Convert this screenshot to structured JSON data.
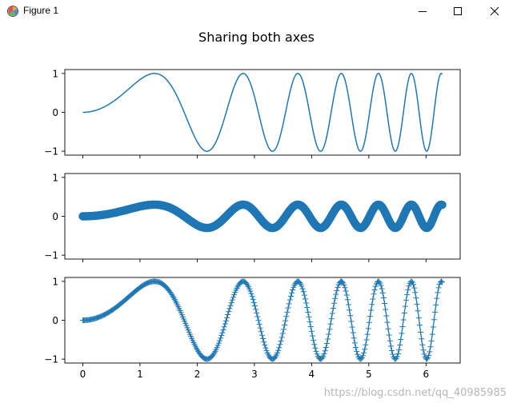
{
  "window": {
    "title": "Figure 1",
    "icons": [
      "figure-app-icon",
      "minimize-icon",
      "maximize-icon",
      "close-icon"
    ]
  },
  "figure": {
    "suptitle": "Sharing both axes"
  },
  "watermark": {
    "text": "https://blog.csdn.net/qq_40985985"
  },
  "chart_data": [
    {
      "type": "line",
      "title": "",
      "function": "sin(x^2)",
      "x_range": [
        0,
        6.283
      ],
      "xlim": [
        -0.314,
        6.597
      ],
      "ylim": [
        -1.1,
        1.1
      ],
      "yticks": [
        -1,
        0,
        1
      ],
      "xticks": [
        0,
        1,
        2,
        3,
        4,
        5,
        6
      ],
      "show_xticklabels": false,
      "color": "#1f77b4",
      "grid": false
    },
    {
      "type": "scatter",
      "title": "",
      "function": "0.3*sin(x^2)",
      "x_range": [
        0,
        6.283
      ],
      "xlim": [
        -0.314,
        6.597
      ],
      "ylim": [
        -1.1,
        1.1
      ],
      "yticks": [
        -1,
        0,
        1
      ],
      "xticks": [
        0,
        1,
        2,
        3,
        4,
        5,
        6
      ],
      "show_xticklabels": false,
      "marker": "o",
      "color": "#1f77b4",
      "grid": false
    },
    {
      "type": "line",
      "title": "",
      "function": "sin(x^2)",
      "x_range": [
        0,
        6.283
      ],
      "xlim": [
        -0.314,
        6.597
      ],
      "ylim": [
        -1.1,
        1.1
      ],
      "yticks": [
        -1,
        0,
        1
      ],
      "xticks": [
        0,
        1,
        2,
        3,
        4,
        5,
        6
      ],
      "show_xticklabels": true,
      "marker": "+",
      "color": "#1f77b4",
      "grid": false
    }
  ]
}
